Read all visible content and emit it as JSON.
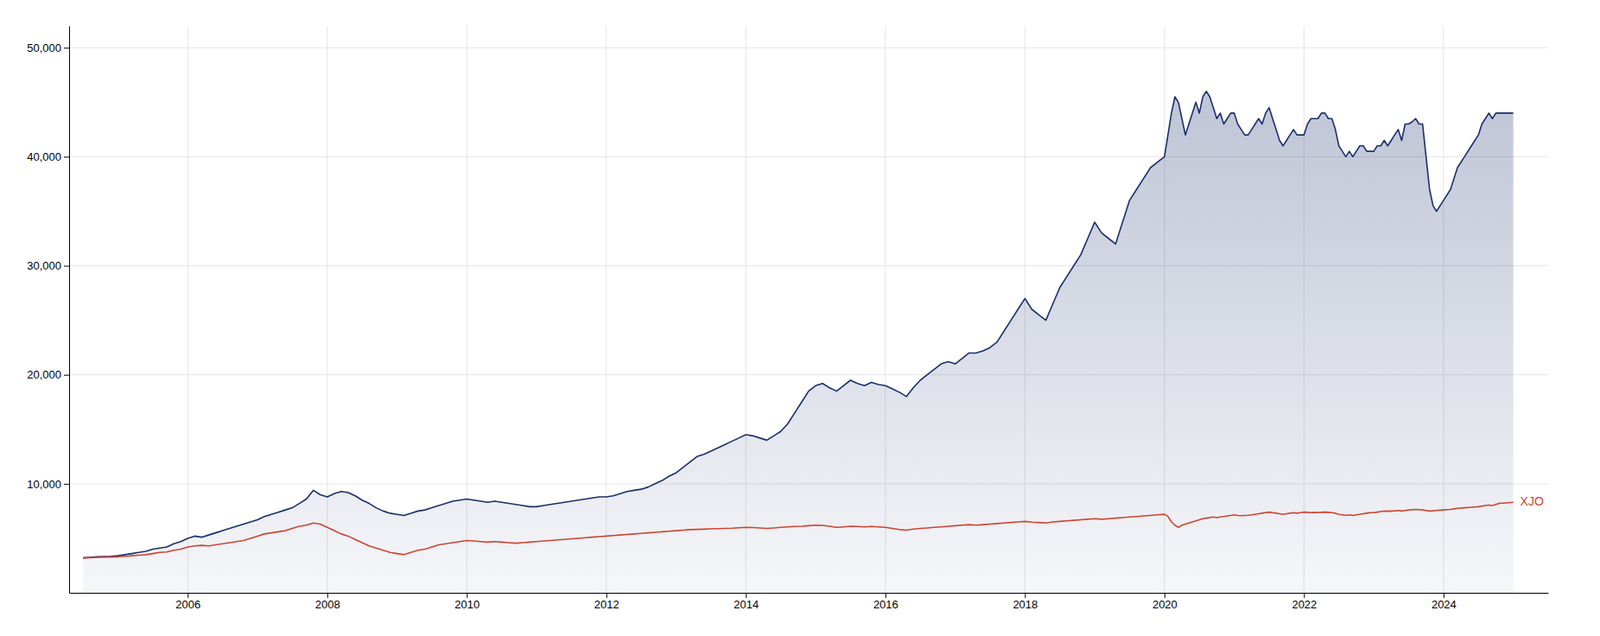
{
  "chart_data": {
    "type": "line",
    "xlim": [
      2004.3,
      2025.5
    ],
    "xticks": [
      2006,
      2008,
      2010,
      2012,
      2014,
      2016,
      2018,
      2020,
      2022,
      2024
    ],
    "ylim": [
      0,
      52000
    ],
    "yticks": [
      {
        "value": 10000,
        "label": "10,000"
      },
      {
        "value": 20000,
        "label": "20,000"
      },
      {
        "value": 30000,
        "label": "30,000"
      },
      {
        "value": 40000,
        "label": "40,000"
      },
      {
        "value": 50000,
        "label": "50,000"
      }
    ],
    "grid": true,
    "x": [
      2004.5,
      2004.7,
      2004.9,
      2005.0,
      2005.1,
      2005.2,
      2005.3,
      2005.4,
      2005.5,
      2005.6,
      2005.7,
      2005.8,
      2005.9,
      2006.0,
      2006.1,
      2006.2,
      2006.3,
      2006.4,
      2006.5,
      2006.6,
      2006.7,
      2006.8,
      2006.9,
      2007.0,
      2007.1,
      2007.2,
      2007.3,
      2007.4,
      2007.5,
      2007.6,
      2007.7,
      2007.8,
      2007.9,
      2008.0,
      2008.1,
      2008.2,
      2008.3,
      2008.4,
      2008.5,
      2008.6,
      2008.7,
      2008.8,
      2008.9,
      2009.0,
      2009.1,
      2009.2,
      2009.3,
      2009.4,
      2009.5,
      2009.6,
      2009.7,
      2009.8,
      2009.9,
      2010.0,
      2010.1,
      2010.2,
      2010.3,
      2010.4,
      2010.5,
      2010.6,
      2010.7,
      2010.8,
      2010.9,
      2011.0,
      2011.1,
      2011.2,
      2011.3,
      2011.4,
      2011.5,
      2011.6,
      2011.7,
      2011.8,
      2011.9,
      2012.0,
      2012.1,
      2012.2,
      2012.3,
      2012.4,
      2012.5,
      2012.6,
      2012.7,
      2012.8,
      2012.9,
      2013.0,
      2013.1,
      2013.2,
      2013.3,
      2013.4,
      2013.5,
      2013.6,
      2013.7,
      2013.8,
      2013.9,
      2014.0,
      2014.1,
      2014.2,
      2014.3,
      2014.4,
      2014.5,
      2014.6,
      2014.7,
      2014.8,
      2014.9,
      2015.0,
      2015.1,
      2015.2,
      2015.3,
      2015.4,
      2015.5,
      2015.6,
      2015.7,
      2015.8,
      2015.9,
      2016.0,
      2016.1,
      2016.2,
      2016.3,
      2016.4,
      2016.5,
      2016.6,
      2016.7,
      2016.8,
      2016.9,
      2017.0,
      2017.1,
      2017.2,
      2017.3,
      2017.4,
      2017.5,
      2017.6,
      2017.7,
      2017.8,
      2017.9,
      2018.0,
      2018.1,
      2018.2,
      2018.3,
      2018.4,
      2018.5,
      2018.6,
      2018.7,
      2018.8,
      2018.9,
      2019.0,
      2019.1,
      2019.2,
      2019.3,
      2019.4,
      2019.5,
      2019.6,
      2019.7,
      2019.8,
      2019.9,
      2020.0,
      2020.05,
      2020.1,
      2020.15,
      2020.2,
      2020.25,
      2020.3,
      2020.35,
      2020.4,
      2020.45,
      2020.5,
      2020.55,
      2020.6,
      2020.65,
      2020.7,
      2020.75,
      2020.8,
      2020.85,
      2020.9,
      2020.95,
      2021.0,
      2021.05,
      2021.1,
      2021.15,
      2021.2,
      2021.25,
      2021.3,
      2021.35,
      2021.4,
      2021.45,
      2021.5,
      2021.55,
      2021.6,
      2021.65,
      2021.7,
      2021.75,
      2021.8,
      2021.85,
      2021.9,
      2021.95,
      2022.0,
      2022.05,
      2022.1,
      2022.15,
      2022.2,
      2022.25,
      2022.3,
      2022.35,
      2022.4,
      2022.45,
      2022.5,
      2022.55,
      2022.6,
      2022.65,
      2022.7,
      2022.75,
      2022.8,
      2022.85,
      2022.9,
      2022.95,
      2023.0,
      2023.05,
      2023.1,
      2023.15,
      2023.2,
      2023.25,
      2023.3,
      2023.35,
      2023.4,
      2023.45,
      2023.5,
      2023.55,
      2023.6,
      2023.65,
      2023.7,
      2023.75,
      2023.8,
      2023.85,
      2023.9,
      2023.95,
      2024.0,
      2024.1,
      2024.15,
      2024.2,
      2024.3,
      2024.4,
      2024.5,
      2024.55,
      2024.6,
      2024.65,
      2024.7,
      2024.75,
      2024.8,
      2024.9,
      2025.0
    ],
    "series": [
      {
        "type": "area",
        "color": "#1a2e6b",
        "values": [
          3200,
          3300,
          3350,
          3400,
          3500,
          3600,
          3700,
          3800,
          4000,
          4100,
          4200,
          4500,
          4700,
          5000,
          5200,
          5100,
          5300,
          5500,
          5700,
          5900,
          6100,
          6300,
          6500,
          6700,
          7000,
          7200,
          7400,
          7600,
          7800,
          8200,
          8600,
          9400,
          9000,
          8800,
          9100,
          9300,
          9200,
          8900,
          8500,
          8200,
          7800,
          7500,
          7300,
          7200,
          7100,
          7300,
          7500,
          7600,
          7800,
          8000,
          8200,
          8400,
          8500,
          8600,
          8500,
          8400,
          8300,
          8400,
          8300,
          8200,
          8100,
          8000,
          7900,
          7900,
          8000,
          8100,
          8200,
          8300,
          8400,
          8500,
          8600,
          8700,
          8800,
          8800,
          8900,
          9100,
          9300,
          9400,
          9500,
          9700,
          10000,
          10300,
          10700,
          11000,
          11500,
          12000,
          12500,
          12700,
          13000,
          13300,
          13600,
          13900,
          14200,
          14500,
          14400,
          14200,
          14000,
          14400,
          14800,
          15500,
          16500,
          17500,
          18500,
          19000,
          19200,
          18800,
          18500,
          19000,
          19500,
          19200,
          19000,
          19300,
          19100,
          19000,
          18700,
          18400,
          18000,
          18800,
          19500,
          20000,
          20500,
          21000,
          21200,
          21000,
          21500,
          22000,
          22000,
          22200,
          22500,
          23000,
          24000,
          25000,
          26000,
          27000,
          26000,
          25500,
          25000,
          26500,
          28000,
          29000,
          30000,
          31000,
          32500,
          34000,
          33000,
          32500,
          32000,
          34000,
          36000,
          37000,
          38000,
          39000,
          39500,
          40000,
          42000,
          44000,
          45500,
          45000,
          43500,
          42000,
          43000,
          44000,
          45000,
          44000,
          45500,
          46000,
          45500,
          44500,
          43500,
          44000,
          43000,
          43500,
          44000,
          44000,
          43000,
          42500,
          42000,
          42000,
          42500,
          43000,
          43500,
          43000,
          44000,
          44500,
          43500,
          42500,
          41500,
          41000,
          41500,
          42000,
          42500,
          42000,
          42000,
          42000,
          43000,
          43500,
          43500,
          43500,
          44000,
          44000,
          43500,
          43500,
          42500,
          41000,
          40500,
          40000,
          40500,
          40000,
          40500,
          41000,
          41000,
          40500,
          40500,
          40500,
          41000,
          41000,
          41500,
          41000,
          41500,
          42000,
          42500,
          41500,
          43000,
          43000,
          43200,
          43500,
          43000,
          43000,
          40000,
          37000,
          35500,
          35000,
          35500,
          36000,
          37000,
          38000,
          39000,
          40000,
          41000,
          42000,
          43000,
          43500,
          44000,
          43500,
          44000,
          44000,
          44000,
          44000
        ]
      },
      {
        "type": "line",
        "name": "XJO",
        "color": "#cc4433",
        "values": [
          3200,
          3250,
          3280,
          3300,
          3350,
          3400,
          3450,
          3500,
          3600,
          3700,
          3750,
          3900,
          4000,
          4200,
          4300,
          4350,
          4300,
          4400,
          4500,
          4600,
          4700,
          4800,
          5000,
          5200,
          5400,
          5500,
          5600,
          5700,
          5900,
          6100,
          6200,
          6400,
          6300,
          6000,
          5700,
          5400,
          5200,
          4900,
          4600,
          4300,
          4100,
          3900,
          3700,
          3600,
          3500,
          3700,
          3900,
          4000,
          4200,
          4400,
          4500,
          4600,
          4700,
          4800,
          4750,
          4700,
          4650,
          4700,
          4650,
          4600,
          4550,
          4600,
          4650,
          4700,
          4750,
          4800,
          4850,
          4900,
          4950,
          5000,
          5050,
          5100,
          5150,
          5200,
          5250,
          5300,
          5350,
          5400,
          5450,
          5500,
          5550,
          5600,
          5650,
          5700,
          5750,
          5800,
          5820,
          5840,
          5860,
          5880,
          5900,
          5920,
          5960,
          6000,
          5980,
          5950,
          5900,
          5950,
          6000,
          6050,
          6080,
          6100,
          6150,
          6200,
          6180,
          6100,
          6000,
          6050,
          6100,
          6080,
          6050,
          6080,
          6050,
          6000,
          5900,
          5800,
          5750,
          5850,
          5900,
          5950,
          6000,
          6050,
          6100,
          6150,
          6200,
          6250,
          6200,
          6250,
          6300,
          6350,
          6400,
          6450,
          6500,
          6550,
          6480,
          6450,
          6400,
          6500,
          6550,
          6600,
          6650,
          6700,
          6750,
          6800,
          6750,
          6800,
          6850,
          6900,
          6950,
          7000,
          7050,
          7100,
          7150,
          7200,
          7000,
          6500,
          6200,
          6000,
          6200,
          6300,
          6400,
          6500,
          6600,
          6700,
          6800,
          6850,
          6900,
          6950,
          6900,
          6950,
          7000,
          7050,
          7100,
          7150,
          7100,
          7080,
          7100,
          7120,
          7150,
          7200,
          7250,
          7300,
          7350,
          7400,
          7350,
          7300,
          7250,
          7200,
          7250,
          7300,
          7350,
          7300,
          7350,
          7400,
          7380,
          7350,
          7380,
          7350,
          7380,
          7400,
          7380,
          7350,
          7300,
          7200,
          7150,
          7100,
          7150,
          7100,
          7150,
          7200,
          7250,
          7300,
          7350,
          7350,
          7400,
          7450,
          7500,
          7480,
          7500,
          7520,
          7550,
          7500,
          7550,
          7600,
          7620,
          7650,
          7630,
          7600,
          7550,
          7500,
          7520,
          7550,
          7580,
          7600,
          7650,
          7700,
          7750,
          7800,
          7850,
          7900,
          7950,
          8000,
          8050,
          8000,
          8100,
          8200,
          8250,
          8300
        ]
      }
    ]
  }
}
